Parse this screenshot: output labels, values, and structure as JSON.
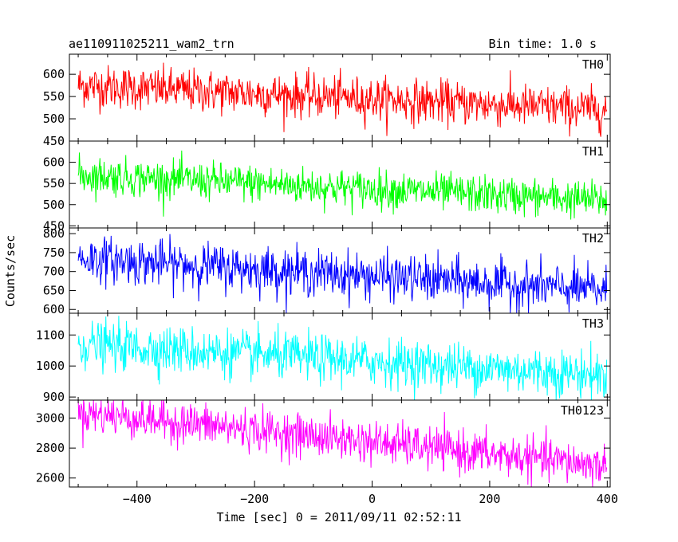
{
  "header": {
    "title": "ae110911025211_wam2_trn",
    "bin_time": "Bin time: 1.0 s"
  },
  "axes": {
    "xlabel": "Time [sec] 0 = 2011/09/11 02:52:11",
    "ylabel": "Counts/sec"
  },
  "chart_data": {
    "type": "line",
    "xlim": [
      -515,
      405
    ],
    "x_ticks": [
      -400,
      -200,
      0,
      200,
      400
    ],
    "x_tick_labels": [
      "−400",
      "−200",
      "0",
      "200",
      "400"
    ],
    "x_range": [
      -500,
      399
    ],
    "bin_time_s": 1.0,
    "panels": [
      {
        "name": "TH0",
        "color": "#ff0000",
        "ylim": [
          450,
          645
        ],
        "y_ticks": [
          450,
          500,
          550,
          600
        ],
        "trend": [
          575,
          520
        ],
        "noise": 24
      },
      {
        "name": "TH1",
        "color": "#00ff00",
        "ylim": [
          445,
          650
        ],
        "y_ticks": [
          450,
          500,
          550,
          600
        ],
        "trend": [
          570,
          510
        ],
        "noise": 22
      },
      {
        "name": "TH2",
        "color": "#0000ff",
        "ylim": [
          590,
          815
        ],
        "y_ticks": [
          600,
          650,
          700,
          750,
          800
        ],
        "trend": [
          735,
          650
        ],
        "noise": 30
      },
      {
        "name": "TH3",
        "color": "#00ffff",
        "ylim": [
          890,
          1170
        ],
        "y_ticks": [
          900,
          1000,
          1100
        ],
        "trend": [
          1070,
          970
        ],
        "noise": 38
      },
      {
        "name": "TH0123",
        "color": "#ff00ff",
        "ylim": [
          2540,
          3120
        ],
        "y_ticks": [
          2600,
          2800,
          3000
        ],
        "trend": [
          3040,
          2680
        ],
        "noise": 70
      }
    ]
  }
}
